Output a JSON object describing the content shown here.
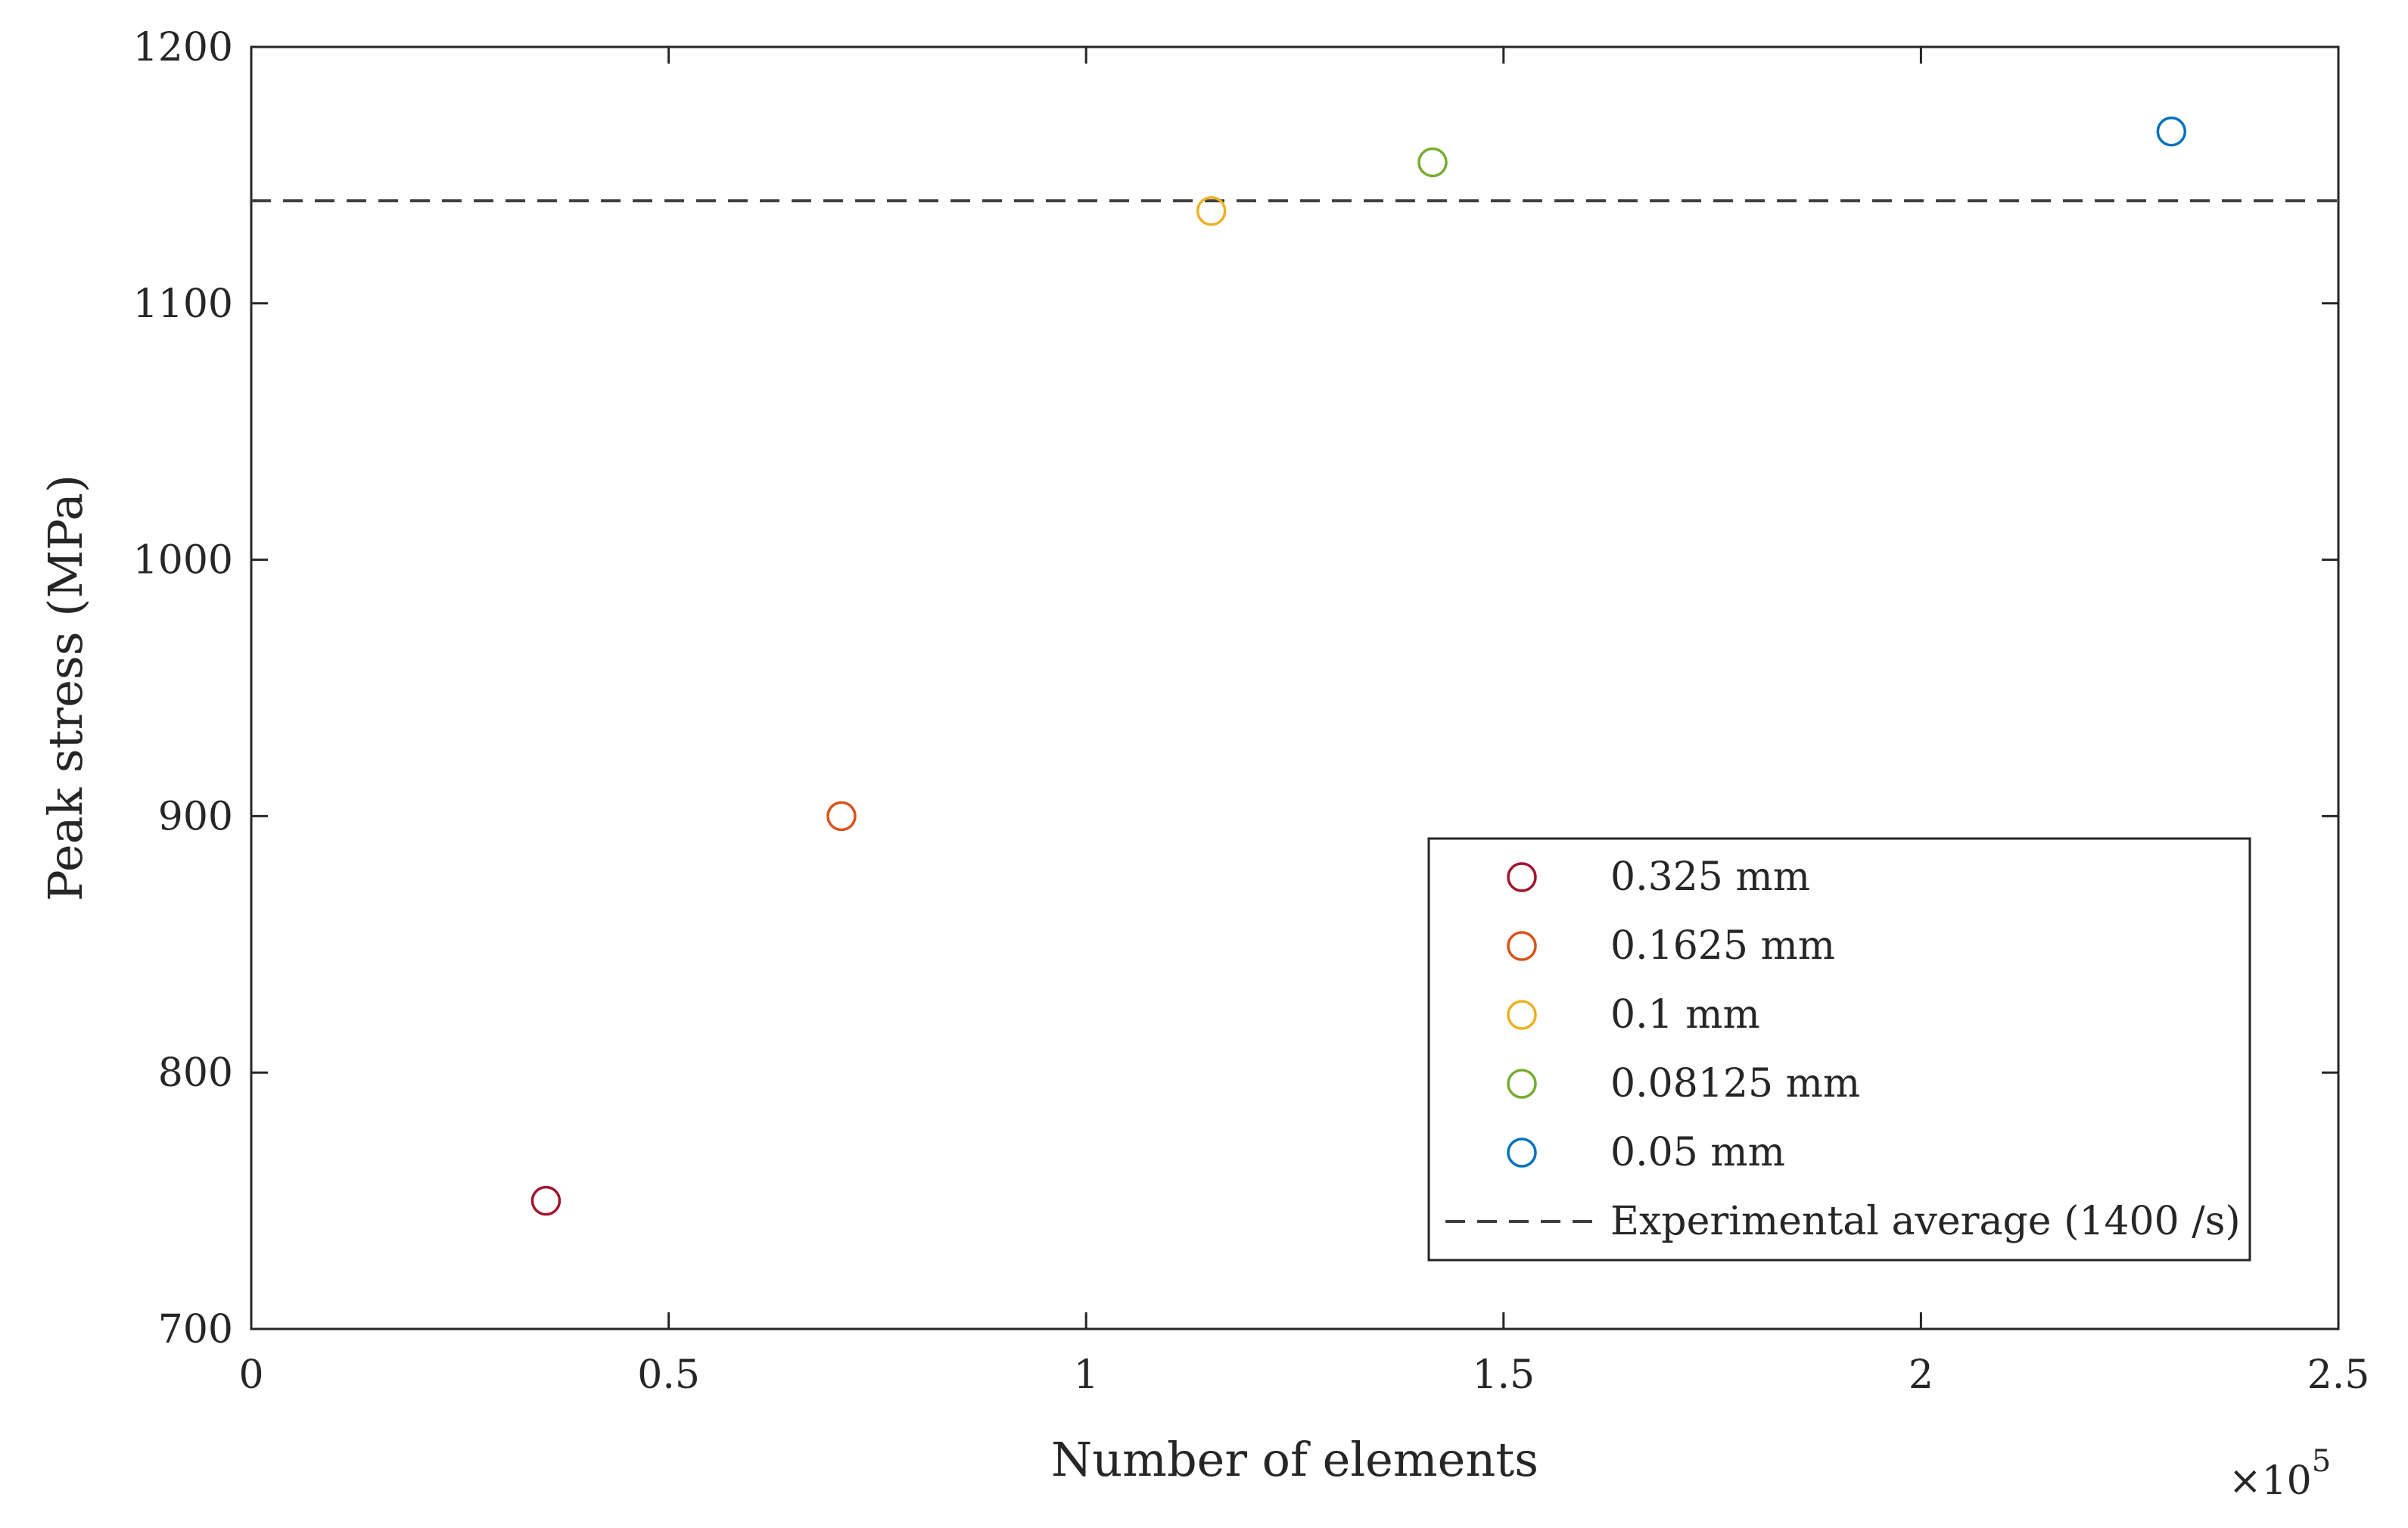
{
  "chart_data": {
    "type": "scatter",
    "xlabel": "Number of elements",
    "ylabel": "Peak stress (MPa)",
    "x_exponent_label": "×10",
    "x_exponent_power": "5",
    "xlim": [
      0,
      2.5
    ],
    "ylim": [
      700,
      1200
    ],
    "x_ticks": [
      "0",
      "0.5",
      "1",
      "1.5",
      "2",
      "2.5"
    ],
    "y_ticks": [
      "700",
      "800",
      "900",
      "1000",
      "1100",
      "1200"
    ],
    "x_tick_values": [
      0,
      0.5,
      1,
      1.5,
      2,
      2.5
    ],
    "y_tick_values": [
      700,
      800,
      900,
      1000,
      1100,
      1200
    ],
    "grid": false,
    "legend_position": "lower-right",
    "series": [
      {
        "name": "0.325 mm",
        "color": "#A2142F",
        "marker": "open-circle",
        "points": [
          {
            "x": 0.353,
            "y": 750
          }
        ]
      },
      {
        "name": "0.1625 mm",
        "color": "#D95319",
        "marker": "open-circle",
        "points": [
          {
            "x": 0.707,
            "y": 900
          }
        ]
      },
      {
        "name": "0.1 mm",
        "color": "#EDB120",
        "marker": "open-circle",
        "points": [
          {
            "x": 1.15,
            "y": 1136
          }
        ]
      },
      {
        "name": "0.08125 mm",
        "color": "#77AC30",
        "marker": "open-circle",
        "points": [
          {
            "x": 1.415,
            "y": 1155
          }
        ]
      },
      {
        "name": "0.05 mm",
        "color": "#0072BD",
        "marker": "open-circle",
        "points": [
          {
            "x": 2.3,
            "y": 1167
          }
        ]
      }
    ],
    "reference_line": {
      "name": "Experimental average (1400 /s)",
      "y": 1140,
      "color": "#404040",
      "style": "dashed"
    }
  }
}
